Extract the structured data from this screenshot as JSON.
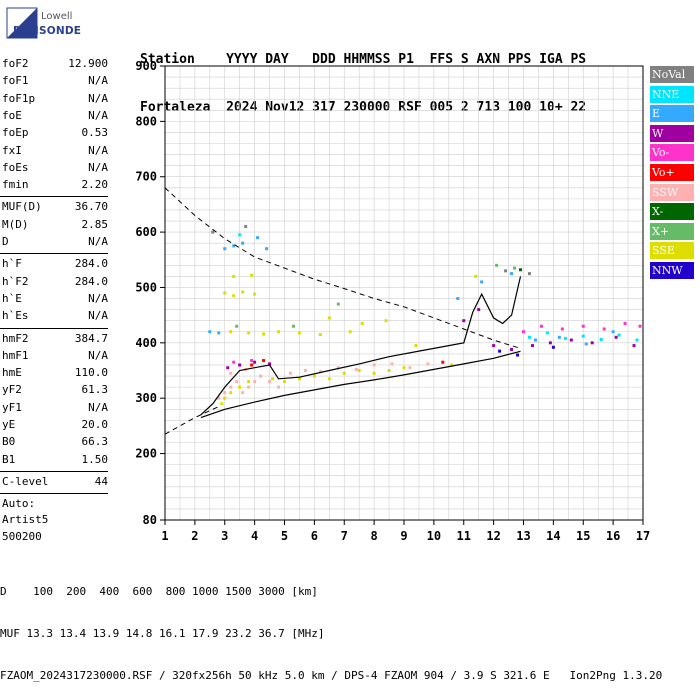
{
  "logo": {
    "brand": "Lowell",
    "name": "DIGISONDE"
  },
  "header": {
    "line1": "Station    YYYY DAY   DDD HHMMSS P1  FFS S AXN PPS IGA PS",
    "line2": "Fortaleza  2024 Nov12 317 230000 RSF 005 2 713 100 10+ 22"
  },
  "params": {
    "group1": [
      {
        "k": "foF2",
        "v": "12.900"
      },
      {
        "k": "foF1",
        "v": "N/A"
      },
      {
        "k": "foF1p",
        "v": "N/A"
      },
      {
        "k": "foE",
        "v": "N/A"
      },
      {
        "k": "foEp",
        "v": "0.53"
      },
      {
        "k": "fxI",
        "v": "N/A"
      },
      {
        "k": "foEs",
        "v": "N/A"
      },
      {
        "k": "fmin",
        "v": "2.20"
      }
    ],
    "group2": [
      {
        "k": "MUF(D)",
        "v": "36.70"
      },
      {
        "k": "M(D)",
        "v": "2.85"
      },
      {
        "k": "D",
        "v": "N/A"
      }
    ],
    "group3": [
      {
        "k": "h`F",
        "v": "284.0"
      },
      {
        "k": "h`F2",
        "v": "284.0"
      },
      {
        "k": "h`E",
        "v": "N/A"
      },
      {
        "k": "h`Es",
        "v": "N/A"
      }
    ],
    "group4": [
      {
        "k": "hmF2",
        "v": "384.7"
      },
      {
        "k": "hmF1",
        "v": "N/A"
      },
      {
        "k": "hmE",
        "v": "110.0"
      },
      {
        "k": "yF2",
        "v": "61.3"
      },
      {
        "k": "yF1",
        "v": "N/A"
      },
      {
        "k": "yE",
        "v": "20.0"
      },
      {
        "k": "B0",
        "v": "66.3"
      },
      {
        "k": "B1",
        "v": "1.50"
      }
    ],
    "clevel": {
      "k": "C-level",
      "v": "44"
    },
    "auto": [
      "Auto:",
      "Artist5",
      "500200"
    ]
  },
  "legend": [
    {
      "label": "NoVal",
      "bg": "#808080",
      "fg": "#ffffff"
    },
    {
      "label": "NNE",
      "bg": "#00e5ff",
      "fg": "#ffffff"
    },
    {
      "label": "E",
      "bg": "#33aaff",
      "fg": "#ffffff"
    },
    {
      "label": "W",
      "bg": "#a000a0",
      "fg": "#ffffff"
    },
    {
      "label": "Vo-",
      "bg": "#ff33cc",
      "fg": "#ffffff"
    },
    {
      "label": "Vo+",
      "bg": "#ff0000",
      "fg": "#ffffff"
    },
    {
      "label": "SSW",
      "bg": "#ffb0b0",
      "fg": "#ffffff"
    },
    {
      "label": "X-",
      "bg": "#006600",
      "fg": "#ffffff"
    },
    {
      "label": "X+",
      "bg": "#66bb66",
      "fg": "#ffffff"
    },
    {
      "label": "SSE",
      "bg": "#dddd00",
      "fg": "#ffffff"
    },
    {
      "label": "NNW",
      "bg": "#2200cc",
      "fg": "#ffffff"
    }
  ],
  "bottom": {
    "d_label": "D",
    "d_values": "    100  200  400  600  800 1000 1500 3000 [km]",
    "muf_label": "MUF",
    "muf_values": " 13.3 13.4 13.9 14.8 16.1 17.9 23.2 36.7 [MHz]",
    "footer": "FZAOM_2024317230000.RSF / 320fx256h 50 kHz 5.0 km / DPS-4 FZAOM 904 / 3.9 S 321.6 E   Ion2Png 1.3.20"
  },
  "chart_data": {
    "type": "scatter",
    "xlim": [
      1,
      17
    ],
    "ylim": [
      80,
      900
    ],
    "x_ticks": [
      1,
      2,
      3,
      4,
      5,
      6,
      7,
      8,
      9,
      10,
      11,
      12,
      13,
      14,
      15,
      16,
      17
    ],
    "y_ticks": [
      80,
      200,
      300,
      400,
      500,
      600,
      700,
      800,
      900
    ],
    "grid": true,
    "series": [
      {
        "color": "#dddd00",
        "points": [
          [
            2.9,
            290
          ],
          [
            3.0,
            300
          ],
          [
            3.2,
            310
          ],
          [
            3.5,
            320
          ],
          [
            3.8,
            330
          ],
          [
            4.2,
            340
          ],
          [
            4.6,
            335
          ],
          [
            5.0,
            330
          ],
          [
            5.5,
            335
          ],
          [
            6.0,
            340
          ],
          [
            6.5,
            335
          ],
          [
            7.0,
            345
          ],
          [
            7.5,
            350
          ],
          [
            8.0,
            345
          ],
          [
            8.5,
            350
          ],
          [
            9.0,
            355
          ],
          [
            3.0,
            490
          ],
          [
            3.3,
            485
          ],
          [
            3.6,
            492
          ],
          [
            4.0,
            488
          ],
          [
            3.2,
            420
          ],
          [
            3.8,
            418
          ],
          [
            4.3,
            416
          ],
          [
            4.8,
            420
          ],
          [
            5.5,
            418
          ],
          [
            6.2,
            415
          ],
          [
            7.2,
            420
          ],
          [
            3.3,
            520
          ],
          [
            3.9,
            522
          ],
          [
            6.5,
            445
          ],
          [
            7.6,
            435
          ],
          [
            8.4,
            440
          ],
          [
            9.4,
            395
          ],
          [
            10.6,
            360
          ],
          [
            11.4,
            520
          ]
        ]
      },
      {
        "color": "#ffb0b0",
        "points": [
          [
            2.8,
            300
          ],
          [
            3.0,
            310
          ],
          [
            3.2,
            320
          ],
          [
            3.4,
            330
          ],
          [
            3.6,
            310
          ],
          [
            3.8,
            320
          ],
          [
            4.0,
            330
          ],
          [
            4.2,
            340
          ],
          [
            4.5,
            330
          ],
          [
            4.8,
            320
          ],
          [
            5.2,
            345
          ],
          [
            5.7,
            350
          ],
          [
            6.2,
            348
          ],
          [
            6.8,
            355
          ],
          [
            7.4,
            352
          ],
          [
            8.0,
            360
          ],
          [
            8.6,
            362
          ],
          [
            9.2,
            355
          ],
          [
            9.8,
            362
          ],
          [
            3.2,
            345
          ],
          [
            3.7,
            352
          ]
        ]
      },
      {
        "color": "#a000a0",
        "points": [
          [
            3.1,
            355
          ],
          [
            3.5,
            360
          ],
          [
            4.0,
            365
          ],
          [
            4.5,
            362
          ],
          [
            11.0,
            440
          ],
          [
            11.5,
            460
          ],
          [
            12.0,
            395
          ],
          [
            12.6,
            388
          ],
          [
            13.3,
            395
          ],
          [
            13.9,
            400
          ],
          [
            14.6,
            405
          ],
          [
            15.3,
            400
          ],
          [
            16.1,
            410
          ],
          [
            16.7,
            395
          ]
        ]
      },
      {
        "color": "#ff33cc",
        "points": [
          [
            3.3,
            365
          ],
          [
            3.9,
            368
          ],
          [
            13.0,
            420
          ],
          [
            13.6,
            430
          ],
          [
            14.3,
            425
          ],
          [
            15.0,
            430
          ],
          [
            15.7,
            425
          ],
          [
            16.4,
            435
          ],
          [
            16.9,
            430
          ]
        ]
      },
      {
        "color": "#33aaff",
        "points": [
          [
            2.5,
            420
          ],
          [
            2.8,
            418
          ],
          [
            3.0,
            570
          ],
          [
            3.3,
            575
          ],
          [
            3.6,
            580
          ],
          [
            4.1,
            590
          ],
          [
            4.4,
            570
          ],
          [
            10.8,
            480
          ],
          [
            11.6,
            510
          ],
          [
            12.6,
            525
          ],
          [
            13.4,
            405
          ],
          [
            14.2,
            410
          ],
          [
            15.1,
            398
          ],
          [
            16.0,
            420
          ]
        ]
      },
      {
        "color": "#00e5ff",
        "points": [
          [
            13.2,
            410
          ],
          [
            13.8,
            418
          ],
          [
            14.4,
            408
          ],
          [
            15.0,
            412
          ],
          [
            15.6,
            406
          ],
          [
            16.2,
            414
          ],
          [
            16.8,
            405
          ],
          [
            3.5,
            595
          ]
        ]
      },
      {
        "color": "#66bb66",
        "points": [
          [
            12.1,
            540
          ],
          [
            12.7,
            535
          ],
          [
            3.4,
            430
          ],
          [
            5.3,
            430
          ],
          [
            6.8,
            470
          ]
        ]
      },
      {
        "color": "#2200cc",
        "points": [
          [
            12.2,
            385
          ],
          [
            12.8,
            378
          ],
          [
            14.0,
            392
          ]
        ]
      },
      {
        "color": "#808080",
        "points": [
          [
            2.6,
            600
          ],
          [
            3.7,
            610
          ],
          [
            12.4,
            530
          ],
          [
            13.2,
            525
          ]
        ]
      },
      {
        "color": "#ff0000",
        "points": [
          [
            3.9,
            360
          ],
          [
            4.3,
            368
          ],
          [
            10.3,
            365
          ]
        ]
      },
      {
        "color": "#006600",
        "points": [
          [
            12.9,
            532
          ]
        ]
      }
    ],
    "virtual_height_trace": [
      [
        2.2,
        270
      ],
      [
        2.6,
        290
      ],
      [
        3.0,
        320
      ],
      [
        3.5,
        350
      ],
      [
        4.0,
        355
      ],
      [
        4.5,
        360
      ],
      [
        4.8,
        335
      ],
      [
        5.5,
        338
      ],
      [
        6.5,
        350
      ],
      [
        7.5,
        362
      ],
      [
        8.5,
        375
      ],
      [
        9.5,
        385
      ],
      [
        10.5,
        395
      ],
      [
        11.0,
        400
      ],
      [
        11.3,
        455
      ],
      [
        11.6,
        488
      ],
      [
        12.0,
        445
      ],
      [
        12.3,
        435
      ],
      [
        12.6,
        450
      ],
      [
        12.9,
        520
      ]
    ],
    "true_height_profile": [
      [
        2.2,
        265
      ],
      [
        3.0,
        280
      ],
      [
        4.0,
        293
      ],
      [
        5.0,
        305
      ],
      [
        6.0,
        315
      ],
      [
        7.0,
        325
      ],
      [
        8.0,
        333
      ],
      [
        9.0,
        342
      ],
      [
        10.0,
        352
      ],
      [
        11.0,
        362
      ],
      [
        12.0,
        372
      ],
      [
        12.9,
        384.7
      ]
    ],
    "muf_dashed": [
      [
        1.0,
        680
      ],
      [
        2.0,
        630
      ],
      [
        3.0,
        588
      ],
      [
        4.0,
        555
      ],
      [
        5.0,
        535
      ],
      [
        6.0,
        515
      ],
      [
        7.0,
        498
      ],
      [
        8.0,
        480
      ],
      [
        9.0,
        465
      ],
      [
        10.0,
        445
      ],
      [
        11.0,
        425
      ],
      [
        12.0,
        405
      ],
      [
        12.9,
        390
      ]
    ],
    "low_dashed": [
      [
        1.0,
        235
      ],
      [
        1.5,
        250
      ],
      [
        2.0,
        265
      ],
      [
        2.8,
        285
      ]
    ]
  }
}
